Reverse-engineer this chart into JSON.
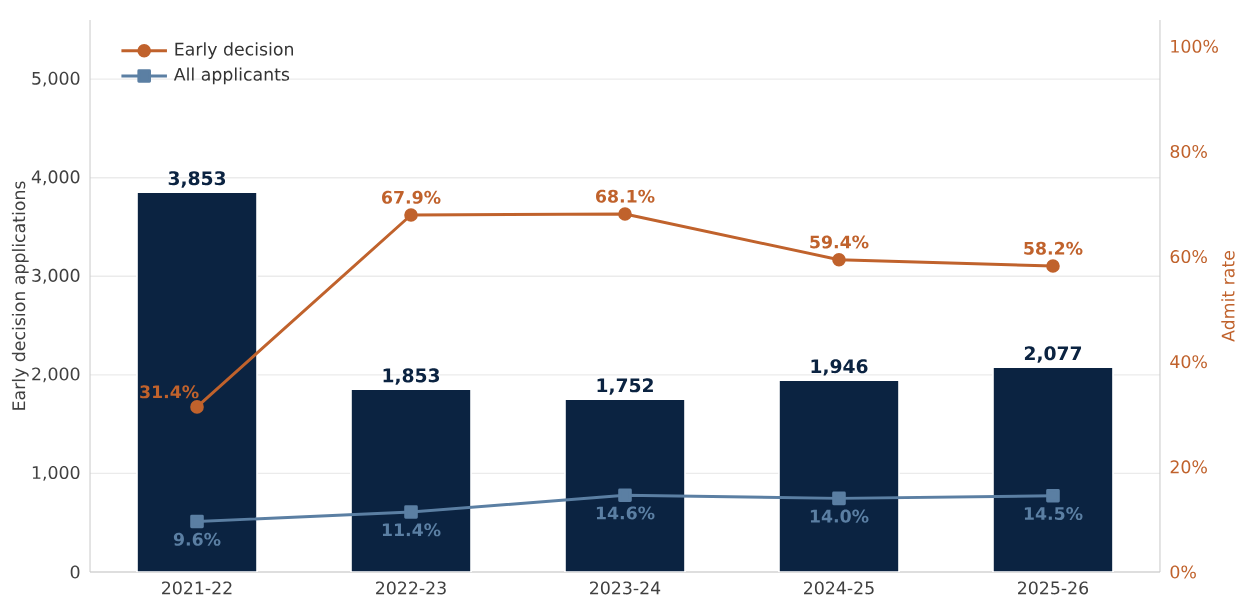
{
  "chart_data": {
    "type": "bar",
    "categories": [
      "2021-22",
      "2022-23",
      "2023-24",
      "2024-25",
      "2025-26"
    ],
    "ylabel": "Early decision applications",
    "y2label": "Admit rate",
    "ylim": [
      0,
      5600
    ],
    "yticks": [
      0,
      {
        "value": 1000,
        "label": "1,000"
      },
      {
        "value": 2000,
        "label": "2,000"
      },
      {
        "value": 3000,
        "label": "3,000"
      },
      {
        "value": 4000,
        "label": "4,000"
      },
      {
        "value": 5000,
        "label": "5,000"
      }
    ],
    "y2lim": [
      0,
      105
    ],
    "y2ticks": [
      {
        "value": 0,
        "label": "0%"
      },
      {
        "value": 20,
        "label": "20%"
      },
      {
        "value": 40,
        "label": "40%"
      },
      {
        "value": 60,
        "label": "60%"
      },
      {
        "value": 80,
        "label": "80%"
      },
      {
        "value": 100,
        "label": "100%"
      }
    ],
    "grid": "y",
    "legend": "top left",
    "series": [
      {
        "color": "#0b2341",
        "values": [
          3853,
          1853,
          1752,
          1946,
          2077
        ],
        "value_labels": [
          "3,853",
          "1,853",
          "1,752",
          "1,946",
          "2,077"
        ]
      },
      {
        "name": "Early decision",
        "type": "line",
        "axis": "y2",
        "marker": "circle",
        "color": "#c0622c",
        "values": [
          31.4,
          67.9,
          68.1,
          59.4,
          58.2
        ],
        "value_labels": [
          "31.4%",
          "67.9%",
          "68.1%",
          "59.4%",
          "58.2%"
        ]
      },
      {
        "name": "All applicants",
        "type": "line",
        "axis": "y2",
        "marker": "square",
        "color": "#5b7fa3",
        "values": [
          9.6,
          11.4,
          14.6,
          14.0,
          14.5
        ],
        "value_labels": [
          "9.6%",
          "11.4%",
          "14.6%",
          "14.0%",
          "14.5%"
        ]
      }
    ]
  }
}
